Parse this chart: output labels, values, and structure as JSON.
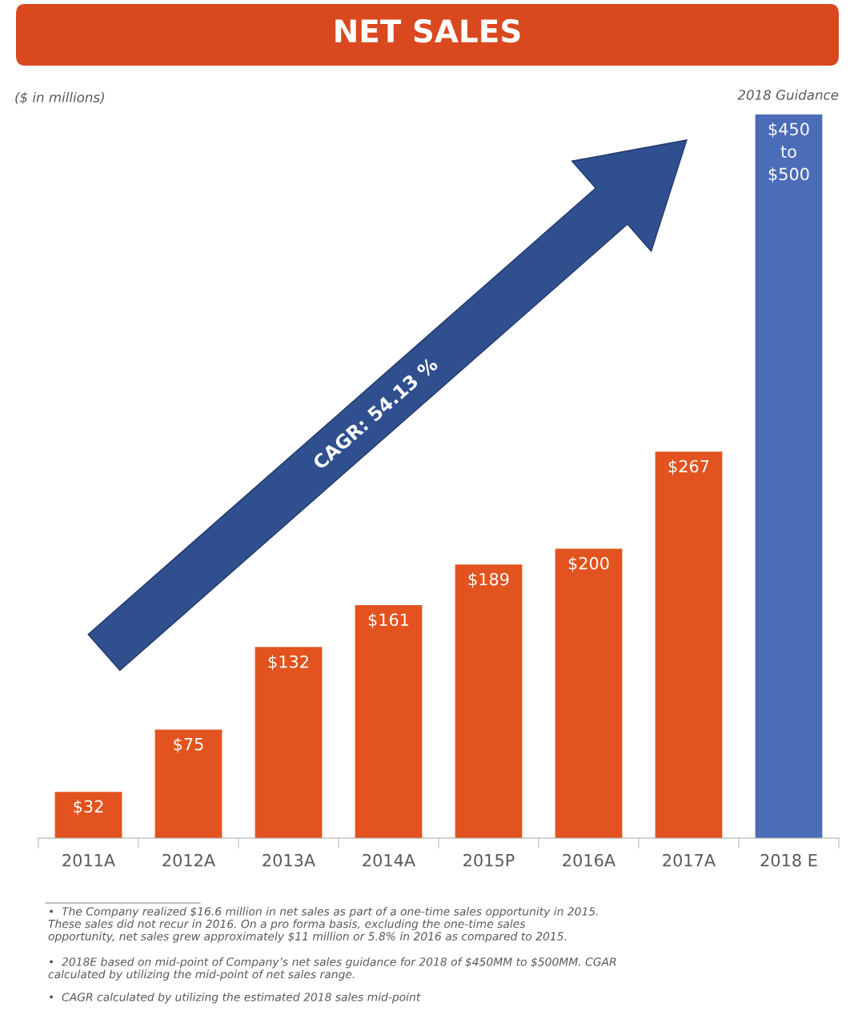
{
  "chart_data": {
    "type": "bar",
    "title": "NET SALES",
    "categories": [
      "2011A",
      "2012A",
      "2013A",
      "2014A",
      "2015P",
      "2016A",
      "2017A",
      "2018 E"
    ],
    "values": [
      32,
      75,
      132,
      161,
      189,
      200,
      267,
      500
    ],
    "colors": [
      "#e2531f",
      "#e2531f",
      "#e2531f",
      "#e2531f",
      "#e2531f",
      "#e2531f",
      "#e2531f",
      "#4b6cb7"
    ],
    "value_labels": [
      "$32",
      "$75",
      "$132",
      "$161",
      "$189",
      "$200",
      "$267",
      "$450\nto\n$500"
    ],
    "ylim": [
      0,
      500
    ],
    "grid": false,
    "legend": false,
    "tick_labels": "x",
    "annotations": [
      "($ in millions)",
      "2018 Guidance",
      "CAGR: 54.13 %",
      "•  The Company realized $16.6 million in net sales as part of a one-time sales opportunity in 2015.\nThese sales did not recur in 2016. On a pro forma basis, excluding the one-time sales\nopportunity, net sales grew approximately $11 million or 5.8% in 2016 as compared to 2015.",
      "•  2018E based on mid-point of Company’s net sales guidance for 2018 of $450MM to $500MM. CGAR\ncalculated by utilizing the mid-point of net sales range.",
      "•  CAGR calculated by utilizing the estimated 2018 sales mid-point"
    ]
  }
}
